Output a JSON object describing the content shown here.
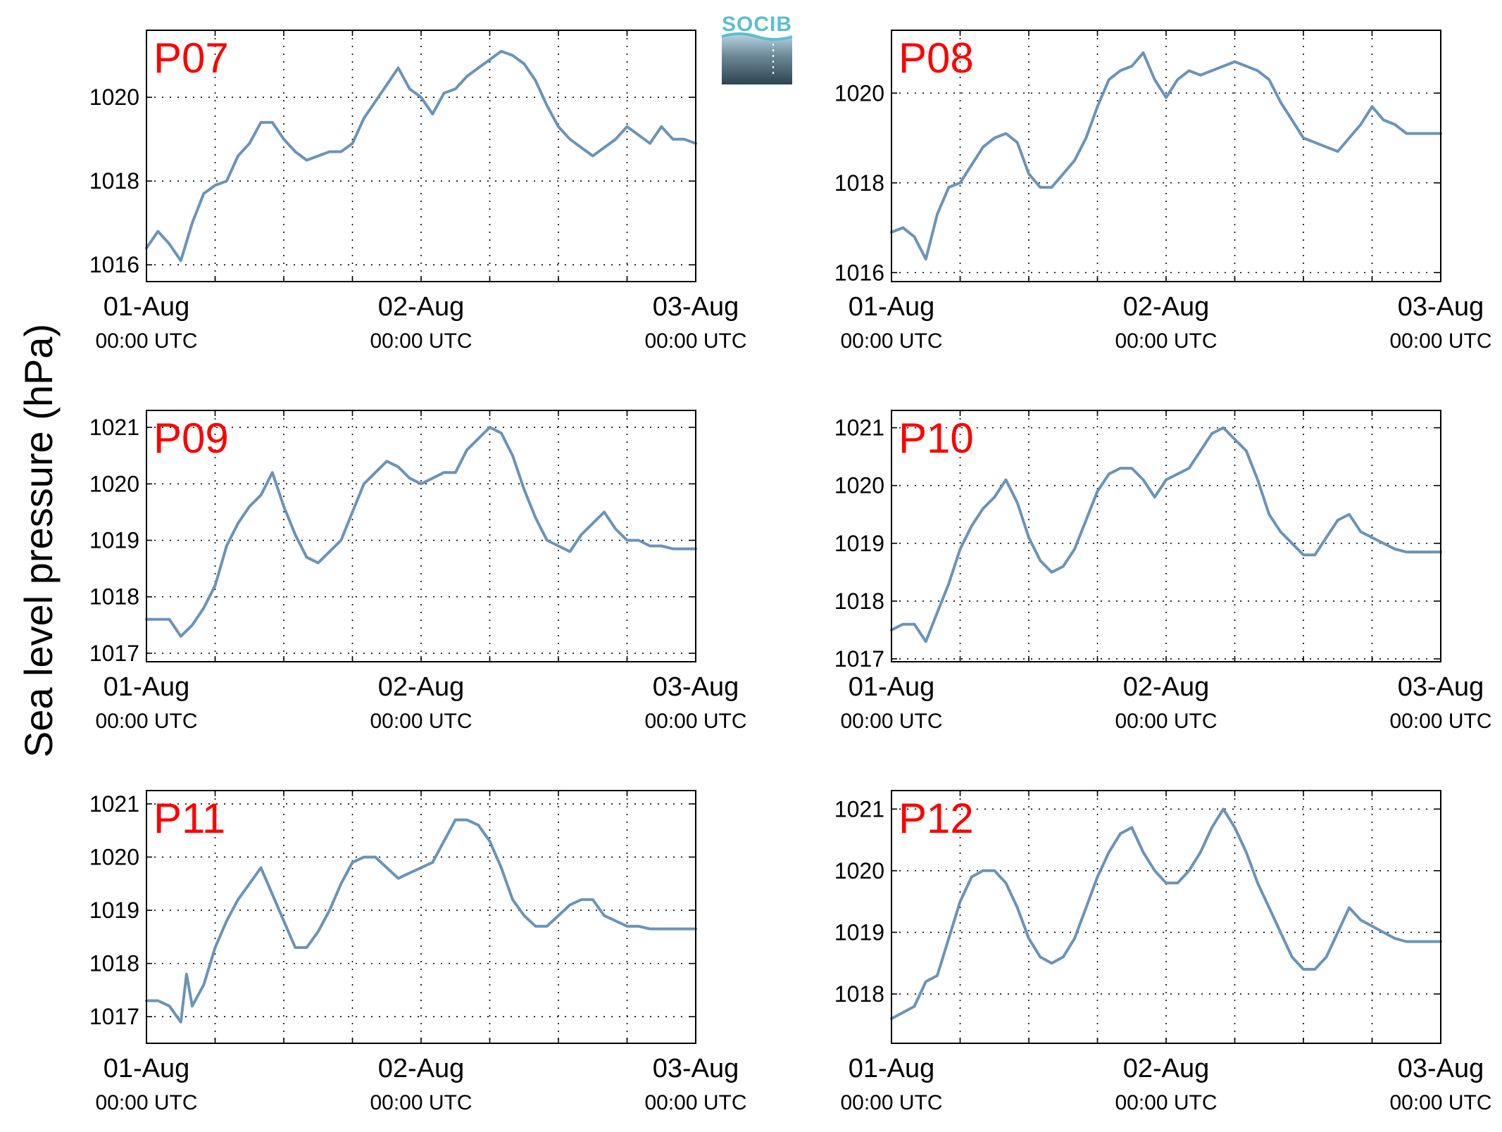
{
  "figure": {
    "ylabel": "Sea level pressure (hPa)",
    "logo_text": "SOCIB",
    "line_color": "#6a94b8",
    "panel_label_color": "#ff0000"
  },
  "chart_data": [
    {
      "type": "line",
      "panel_label": "P07",
      "x_ticks": [
        {
          "date": "01-Aug",
          "time": "00:00 UTC"
        },
        {
          "date": "02-Aug",
          "time": "00:00 UTC"
        },
        {
          "date": "03-Aug",
          "time": "00:00 UTC"
        }
      ],
      "xlim": [
        "2014-08-01 00:00",
        "2014-08-03 00:00"
      ],
      "ylim": [
        1015.6,
        1021.6
      ],
      "y_ticks": [
        1016,
        1018,
        1020
      ],
      "grid": true,
      "series": [
        {
          "x": [
            "08-01 00:00",
            "08-01 01:00",
            "08-01 02:00",
            "08-01 03:00",
            "08-01 04:00",
            "08-01 05:00",
            "08-01 06:00",
            "08-01 07:00",
            "08-01 08:00",
            "08-01 09:00",
            "08-01 10:00",
            "08-01 11:00",
            "08-01 12:00",
            "08-01 13:00",
            "08-01 14:00",
            "08-01 15:00",
            "08-01 16:00",
            "08-01 17:00",
            "08-01 18:00",
            "08-01 19:00",
            "08-01 20:00",
            "08-01 21:00",
            "08-01 22:00",
            "08-01 23:00",
            "08-02 00:00",
            "08-02 01:00",
            "08-02 02:00",
            "08-02 03:00",
            "08-02 04:00",
            "08-02 05:00",
            "08-02 06:00",
            "08-02 07:00",
            "08-02 08:00",
            "08-02 09:00",
            "08-02 10:00",
            "08-02 11:00",
            "08-02 12:00",
            "08-02 13:00",
            "08-02 14:00",
            "08-02 15:00",
            "08-02 16:00",
            "08-02 17:00",
            "08-02 18:00",
            "08-02 19:00",
            "08-02 20:00",
            "08-02 21:00",
            "08-02 22:00",
            "08-02 23:00",
            "08-03 00:00"
          ],
          "y": [
            1016.4,
            1016.8,
            1016.5,
            1016.1,
            1017.0,
            1017.7,
            1017.9,
            1018.0,
            1018.6,
            1018.9,
            1019.4,
            1019.4,
            1019.0,
            1018.7,
            1018.5,
            1018.6,
            1018.7,
            1018.7,
            1018.9,
            1019.5,
            1019.9,
            1020.3,
            1020.7,
            1020.2,
            1020.0,
            1019.6,
            1020.1,
            1020.2,
            1020.5,
            1020.7,
            1020.9,
            1021.1,
            1021.0,
            1020.8,
            1020.4,
            1019.8,
            1019.3,
            1019.0,
            1018.8,
            1018.6,
            1018.8,
            1019.0,
            1019.3,
            1019.1,
            1018.9,
            1019.3,
            1019.0,
            1019.0,
            1018.9
          ]
        }
      ]
    },
    {
      "type": "line",
      "panel_label": "P08",
      "x_ticks": [
        {
          "date": "01-Aug",
          "time": "00:00 UTC"
        },
        {
          "date": "02-Aug",
          "time": "00:00 UTC"
        },
        {
          "date": "03-Aug",
          "time": "00:00 UTC"
        }
      ],
      "xlim": [
        "2014-08-01 00:00",
        "2014-08-03 00:00"
      ],
      "ylim": [
        1015.8,
        1021.4
      ],
      "y_ticks": [
        1016,
        1018,
        1020
      ],
      "grid": true,
      "series": [
        {
          "x": [
            "08-01 00:00",
            "08-01 01:00",
            "08-01 02:00",
            "08-01 03:00",
            "08-01 04:00",
            "08-01 05:00",
            "08-01 06:00",
            "08-01 07:00",
            "08-01 08:00",
            "08-01 09:00",
            "08-01 10:00",
            "08-01 11:00",
            "08-01 12:00",
            "08-01 13:00",
            "08-01 14:00",
            "08-01 15:00",
            "08-01 16:00",
            "08-01 17:00",
            "08-01 18:00",
            "08-01 19:00",
            "08-01 20:00",
            "08-01 21:00",
            "08-01 22:00",
            "08-01 23:00",
            "08-02 00:00",
            "08-02 01:00",
            "08-02 02:00",
            "08-02 03:00",
            "08-02 04:00",
            "08-02 05:00",
            "08-02 06:00",
            "08-02 07:00",
            "08-02 08:00",
            "08-02 09:00",
            "08-02 10:00",
            "08-02 11:00",
            "08-02 12:00",
            "08-02 13:00",
            "08-02 14:00",
            "08-02 15:00",
            "08-02 16:00",
            "08-02 17:00",
            "08-02 18:00",
            "08-02 19:00",
            "08-02 20:00",
            "08-02 21:00",
            "08-02 22:00",
            "08-02 23:00",
            "08-03 00:00"
          ],
          "y": [
            1016.9,
            1017.0,
            1016.8,
            1016.3,
            1017.3,
            1017.9,
            1018.0,
            1018.4,
            1018.8,
            1019.0,
            1019.1,
            1018.9,
            1018.2,
            1017.9,
            1017.9,
            1018.2,
            1018.5,
            1019.0,
            1019.7,
            1020.3,
            1020.5,
            1020.6,
            1020.9,
            1020.3,
            1019.9,
            1020.3,
            1020.5,
            1020.4,
            1020.5,
            1020.6,
            1020.7,
            1020.6,
            1020.5,
            1020.3,
            1019.8,
            1019.4,
            1019.0,
            1018.9,
            1018.8,
            1018.7,
            1019.0,
            1019.3,
            1019.7,
            1019.4,
            1019.3,
            1019.1,
            1019.1,
            1019.1,
            1019.1
          ]
        }
      ]
    },
    {
      "type": "line",
      "panel_label": "P09",
      "x_ticks": [
        {
          "date": "01-Aug",
          "time": "00:00 UTC"
        },
        {
          "date": "02-Aug",
          "time": "00:00 UTC"
        },
        {
          "date": "03-Aug",
          "time": "00:00 UTC"
        }
      ],
      "xlim": [
        "2014-08-01 00:00",
        "2014-08-03 00:00"
      ],
      "ylim": [
        1016.85,
        1021.3
      ],
      "y_ticks": [
        1017,
        1018,
        1019,
        1020,
        1021
      ],
      "grid": true,
      "series": [
        {
          "x": [
            "08-01 00:00",
            "08-01 01:00",
            "08-01 02:00",
            "08-01 03:00",
            "08-01 04:00",
            "08-01 05:00",
            "08-01 06:00",
            "08-01 07:00",
            "08-01 08:00",
            "08-01 09:00",
            "08-01 10:00",
            "08-01 11:00",
            "08-01 12:00",
            "08-01 13:00",
            "08-01 14:00",
            "08-01 15:00",
            "08-01 16:00",
            "08-01 17:00",
            "08-01 18:00",
            "08-01 19:00",
            "08-01 20:00",
            "08-01 21:00",
            "08-01 22:00",
            "08-01 23:00",
            "08-02 00:00",
            "08-02 01:00",
            "08-02 02:00",
            "08-02 03:00",
            "08-02 04:00",
            "08-02 05:00",
            "08-02 06:00",
            "08-02 07:00",
            "08-02 08:00",
            "08-02 09:00",
            "08-02 10:00",
            "08-02 11:00",
            "08-02 12:00",
            "08-02 13:00",
            "08-02 14:00",
            "08-02 15:00",
            "08-02 16:00",
            "08-02 17:00",
            "08-02 18:00",
            "08-02 19:00",
            "08-02 20:00",
            "08-02 21:00",
            "08-02 22:00",
            "08-02 23:00",
            "08-03 00:00"
          ],
          "y": [
            1017.6,
            1017.6,
            1017.6,
            1017.3,
            1017.5,
            1017.8,
            1018.2,
            1018.9,
            1019.3,
            1019.6,
            1019.8,
            1020.2,
            1019.6,
            1019.1,
            1018.7,
            1018.6,
            1018.8,
            1019.0,
            1019.5,
            1020.0,
            1020.2,
            1020.4,
            1020.3,
            1020.1,
            1020.0,
            1020.1,
            1020.2,
            1020.2,
            1020.6,
            1020.8,
            1021.0,
            1020.9,
            1020.5,
            1019.9,
            1019.4,
            1019.0,
            1018.9,
            1018.8,
            1019.1,
            1019.3,
            1019.5,
            1019.2,
            1019.0,
            1019.0,
            1018.9,
            1018.9,
            1018.85,
            1018.85,
            1018.85
          ]
        }
      ]
    },
    {
      "type": "line",
      "panel_label": "P10",
      "x_ticks": [
        {
          "date": "01-Aug",
          "time": "00:00 UTC"
        },
        {
          "date": "02-Aug",
          "time": "00:00 UTC"
        },
        {
          "date": "03-Aug",
          "time": "00:00 UTC"
        }
      ],
      "xlim": [
        "2014-08-01 00:00",
        "2014-08-03 00:00"
      ],
      "ylim": [
        1016.95,
        1021.3
      ],
      "y_ticks": [
        1017,
        1018,
        1019,
        1020,
        1021
      ],
      "grid": true,
      "series": [
        {
          "x": [
            "08-01 00:00",
            "08-01 01:00",
            "08-01 02:00",
            "08-01 03:00",
            "08-01 04:00",
            "08-01 05:00",
            "08-01 06:00",
            "08-01 07:00",
            "08-01 08:00",
            "08-01 09:00",
            "08-01 10:00",
            "08-01 11:00",
            "08-01 12:00",
            "08-01 13:00",
            "08-01 14:00",
            "08-01 15:00",
            "08-01 16:00",
            "08-01 17:00",
            "08-01 18:00",
            "08-01 19:00",
            "08-01 20:00",
            "08-01 21:00",
            "08-01 22:00",
            "08-01 23:00",
            "08-02 00:00",
            "08-02 01:00",
            "08-02 02:00",
            "08-02 03:00",
            "08-02 04:00",
            "08-02 05:00",
            "08-02 06:00",
            "08-02 07:00",
            "08-02 08:00",
            "08-02 09:00",
            "08-02 10:00",
            "08-02 11:00",
            "08-02 12:00",
            "08-02 13:00",
            "08-02 14:00",
            "08-02 15:00",
            "08-02 16:00",
            "08-02 17:00",
            "08-02 18:00",
            "08-02 19:00",
            "08-02 20:00",
            "08-02 21:00",
            "08-02 22:00",
            "08-02 23:00",
            "08-03 00:00"
          ],
          "y": [
            1017.5,
            1017.6,
            1017.6,
            1017.3,
            1017.8,
            1018.3,
            1018.9,
            1019.3,
            1019.6,
            1019.8,
            1020.1,
            1019.7,
            1019.1,
            1018.7,
            1018.5,
            1018.6,
            1018.9,
            1019.4,
            1019.9,
            1020.2,
            1020.3,
            1020.3,
            1020.1,
            1019.8,
            1020.1,
            1020.2,
            1020.3,
            1020.6,
            1020.9,
            1021.0,
            1020.8,
            1020.6,
            1020.1,
            1019.5,
            1019.2,
            1019.0,
            1018.8,
            1018.8,
            1019.1,
            1019.4,
            1019.5,
            1019.2,
            1019.1,
            1019.0,
            1018.9,
            1018.85,
            1018.85,
            1018.85,
            1018.85
          ]
        }
      ]
    },
    {
      "type": "line",
      "panel_label": "P11",
      "x_ticks": [
        {
          "date": "01-Aug",
          "time": "00:00 UTC"
        },
        {
          "date": "02-Aug",
          "time": "00:00 UTC"
        },
        {
          "date": "03-Aug",
          "time": "00:00 UTC"
        }
      ],
      "xlim": [
        "2014-08-01 00:00",
        "2014-08-03 00:00"
      ],
      "ylim": [
        1016.5,
        1021.25
      ],
      "y_ticks": [
        1017,
        1018,
        1019,
        1020,
        1021
      ],
      "grid": true,
      "series": [
        {
          "x": [
            "08-01 00:00",
            "08-01 01:00",
            "08-01 02:00",
            "08-01 03:00",
            "08-01 03:30",
            "08-01 04:00",
            "08-01 05:00",
            "08-01 06:00",
            "08-01 07:00",
            "08-01 08:00",
            "08-01 09:00",
            "08-01 10:00",
            "08-01 11:00",
            "08-01 12:00",
            "08-01 13:00",
            "08-01 14:00",
            "08-01 15:00",
            "08-01 16:00",
            "08-01 17:00",
            "08-01 18:00",
            "08-01 19:00",
            "08-01 20:00",
            "08-01 21:00",
            "08-01 22:00",
            "08-01 23:00",
            "08-02 00:00",
            "08-02 01:00",
            "08-02 02:00",
            "08-02 03:00",
            "08-02 04:00",
            "08-02 05:00",
            "08-02 06:00",
            "08-02 07:00",
            "08-02 08:00",
            "08-02 09:00",
            "08-02 10:00",
            "08-02 11:00",
            "08-02 12:00",
            "08-02 13:00",
            "08-02 14:00",
            "08-02 15:00",
            "08-02 16:00",
            "08-02 17:00",
            "08-02 18:00",
            "08-02 19:00",
            "08-02 20:00",
            "08-02 21:00",
            "08-02 22:00",
            "08-02 23:00",
            "08-03 00:00"
          ],
          "y": [
            1017.3,
            1017.3,
            1017.2,
            1016.9,
            1017.8,
            1017.2,
            1017.6,
            1018.3,
            1018.8,
            1019.2,
            1019.5,
            1019.8,
            1019.3,
            1018.8,
            1018.3,
            1018.3,
            1018.6,
            1019.0,
            1019.5,
            1019.9,
            1020.0,
            1020.0,
            1019.8,
            1019.6,
            1019.7,
            1019.8,
            1019.9,
            1020.3,
            1020.7,
            1020.7,
            1020.6,
            1020.3,
            1019.8,
            1019.2,
            1018.9,
            1018.7,
            1018.7,
            1018.9,
            1019.1,
            1019.2,
            1019.2,
            1018.9,
            1018.8,
            1018.7,
            1018.7,
            1018.65,
            1018.65,
            1018.65,
            1018.65,
            1018.65
          ]
        }
      ]
    },
    {
      "type": "line",
      "panel_label": "P12",
      "x_ticks": [
        {
          "date": "01-Aug",
          "time": "00:00 UTC"
        },
        {
          "date": "02-Aug",
          "time": "00:00 UTC"
        },
        {
          "date": "03-Aug",
          "time": "00:00 UTC"
        }
      ],
      "xlim": [
        "2014-08-01 00:00",
        "2014-08-03 00:00"
      ],
      "ylim": [
        1017.2,
        1021.3
      ],
      "y_ticks": [
        1018,
        1019,
        1020,
        1021
      ],
      "grid": true,
      "series": [
        {
          "x": [
            "08-01 00:00",
            "08-01 01:00",
            "08-01 02:00",
            "08-01 03:00",
            "08-01 04:00",
            "08-01 05:00",
            "08-01 06:00",
            "08-01 07:00",
            "08-01 08:00",
            "08-01 09:00",
            "08-01 10:00",
            "08-01 11:00",
            "08-01 12:00",
            "08-01 13:00",
            "08-01 14:00",
            "08-01 15:00",
            "08-01 16:00",
            "08-01 17:00",
            "08-01 18:00",
            "08-01 19:00",
            "08-01 20:00",
            "08-01 21:00",
            "08-01 22:00",
            "08-01 23:00",
            "08-02 00:00",
            "08-02 01:00",
            "08-02 02:00",
            "08-02 03:00",
            "08-02 04:00",
            "08-02 05:00",
            "08-02 06:00",
            "08-02 07:00",
            "08-02 08:00",
            "08-02 09:00",
            "08-02 10:00",
            "08-02 11:00",
            "08-02 12:00",
            "08-02 13:00",
            "08-02 14:00",
            "08-02 15:00",
            "08-02 16:00",
            "08-02 17:00",
            "08-02 18:00",
            "08-02 19:00",
            "08-02 20:00",
            "08-02 21:00",
            "08-02 22:00",
            "08-02 23:00",
            "08-03 00:00"
          ],
          "y": [
            1017.6,
            1017.7,
            1017.8,
            1018.2,
            1018.3,
            1018.9,
            1019.5,
            1019.9,
            1020.0,
            1020.0,
            1019.8,
            1019.4,
            1018.9,
            1018.6,
            1018.5,
            1018.6,
            1018.9,
            1019.4,
            1019.9,
            1020.3,
            1020.6,
            1020.7,
            1020.3,
            1020.0,
            1019.8,
            1019.8,
            1020.0,
            1020.3,
            1020.7,
            1021.0,
            1020.7,
            1020.3,
            1019.8,
            1019.4,
            1019.0,
            1018.6,
            1018.4,
            1018.4,
            1018.6,
            1019.0,
            1019.4,
            1019.2,
            1019.1,
            1019.0,
            1018.9,
            1018.85,
            1018.85,
            1018.85,
            1018.85
          ]
        }
      ]
    }
  ]
}
